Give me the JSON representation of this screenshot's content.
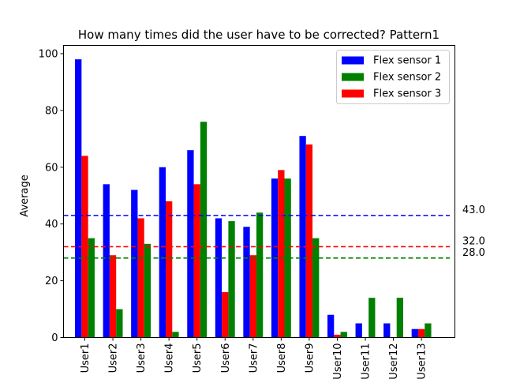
{
  "chart_data": {
    "type": "bar",
    "title": "How many times did the user have to be corrected? Pattern1",
    "xlabel": "",
    "ylabel": "Average",
    "categories": [
      "User1",
      "User2",
      "User3",
      "User4",
      "User5",
      "User6",
      "User7",
      "User8",
      "User9",
      "User10",
      "User11",
      "User12",
      "User13"
    ],
    "series": [
      {
        "name": "Flex sensor 1",
        "color": "#0000ff",
        "values": [
          98,
          54,
          52,
          60,
          66,
          42,
          39,
          56,
          71,
          8,
          5,
          5,
          3
        ]
      },
      {
        "name": "Flex sensor 3",
        "color": "#ff0000",
        "values": [
          64,
          29,
          42,
          48,
          54,
          16,
          29,
          59,
          68,
          1,
          0,
          0,
          3
        ]
      },
      {
        "name": "Flex sensor 2",
        "color": "#008000",
        "values": [
          35,
          10,
          33,
          2,
          76,
          41,
          44,
          56,
          35,
          2,
          14,
          14,
          5
        ]
      }
    ],
    "legend_order": [
      "Flex sensor 1",
      "Flex sensor 2",
      "Flex sensor 3"
    ],
    "legend_position": "top-right",
    "reference_lines": [
      {
        "value": 43.0,
        "label": "43.0",
        "color": "#0000ff",
        "style": "dashed"
      },
      {
        "value": 32.0,
        "label": "32.0",
        "color": "#ff0000",
        "style": "dashed"
      },
      {
        "value": 28.0,
        "label": "28.0",
        "color": "#008000",
        "style": "dashed"
      }
    ],
    "yticks": [
      0,
      20,
      40,
      60,
      80,
      100
    ],
    "ylim": [
      0,
      102.9
    ],
    "grid": false
  }
}
